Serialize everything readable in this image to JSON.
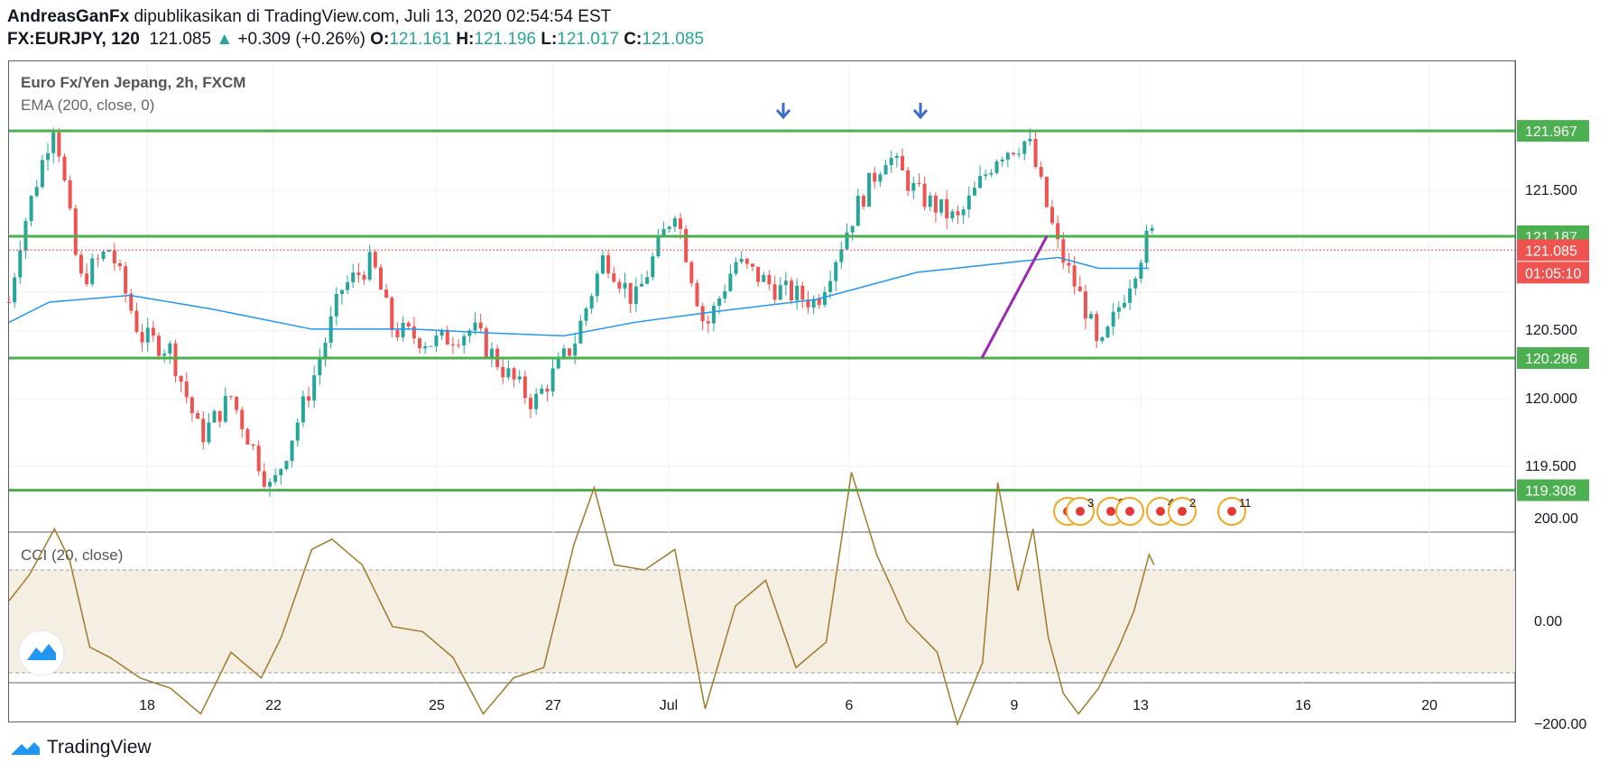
{
  "header": {
    "author": "AndreasGanFx",
    "published": "dipublikasikan di TradingView.com, Juli 13, 2020 02:54:54 EST",
    "symbol": "FX:EURJPY, 120",
    "last": "121.085",
    "change": "+0.309 (+0.26%)",
    "o_label": "O:",
    "o": "121.161",
    "h_label": "H:",
    "h": "121.196",
    "l_label": "L:",
    "l": "121.017",
    "c_label": "C:",
    "c": "121.085"
  },
  "footer": {
    "brand": "TradingView"
  },
  "colors": {
    "up": "#26a69a",
    "down": "#ef5350",
    "ema": "#2196f3",
    "levels": "#4caf50",
    "trendline": "#9c27b0",
    "cci": "#a07a2a",
    "arrows": "#2962ff"
  },
  "chart_data": [
    {
      "type": "candlestick",
      "title": "Euro Fx/Yen Jepang, 2h, FXCM",
      "indicator": "EMA (200, close, 0)",
      "x_ticks": [
        "18",
        "22",
        "25",
        "27",
        "Jul",
        "6",
        "9",
        "13",
        "16",
        "20"
      ],
      "y_ticks": [
        "121.500",
        "120.500",
        "120.000",
        "119.500"
      ],
      "ylim": [
        118.78,
        122.45
      ],
      "horizontal_levels": [
        121.967,
        121.187,
        120.286,
        119.308
      ],
      "level_labels": [
        "121.967",
        "121.187",
        "120.286",
        "119.308"
      ],
      "current_price": 121.085,
      "current_price_label": "121.085",
      "countdown": "01:05:10",
      "price_path": [
        [
          0,
          120.7
        ],
        [
          12,
          121.2
        ],
        [
          45,
          122.05
        ],
        [
          70,
          120.85
        ],
        [
          100,
          121.1
        ],
        [
          130,
          120.45
        ],
        [
          160,
          120.35
        ],
        [
          190,
          119.7
        ],
        [
          220,
          120.0
        ],
        [
          260,
          119.3
        ],
        [
          300,
          120.1
        ],
        [
          330,
          120.8
        ],
        [
          360,
          121.0
        ],
        [
          380,
          120.5
        ],
        [
          420,
          120.4
        ],
        [
          460,
          120.5
        ],
        [
          490,
          120.2
        ],
        [
          520,
          119.95
        ],
        [
          560,
          120.4
        ],
        [
          590,
          121.05
        ],
        [
          620,
          120.7
        ],
        [
          660,
          121.4
        ],
        [
          690,
          120.5
        ],
        [
          720,
          121.0
        ],
        [
          760,
          120.8
        ],
        [
          800,
          120.7
        ],
        [
          840,
          121.4
        ],
        [
          870,
          121.8
        ],
        [
          900,
          121.5
        ],
        [
          940,
          121.3
        ],
        [
          980,
          121.8
        ],
        [
          1010,
          121.9
        ],
        [
          1040,
          121.1
        ],
        [
          1070,
          120.6
        ],
        [
          1080,
          120.3
        ],
        [
          1110,
          120.85
        ],
        [
          1130,
          121.2
        ]
      ],
      "ema_path": [
        [
          0,
          120.55
        ],
        [
          40,
          120.7
        ],
        [
          120,
          120.75
        ],
        [
          200,
          120.65
        ],
        [
          300,
          120.5
        ],
        [
          400,
          120.5
        ],
        [
          480,
          120.47
        ],
        [
          550,
          120.45
        ],
        [
          620,
          120.55
        ],
        [
          700,
          120.63
        ],
        [
          800,
          120.72
        ],
        [
          900,
          120.92
        ],
        [
          1000,
          121.0
        ],
        [
          1040,
          121.03
        ],
        [
          1080,
          120.95
        ],
        [
          1130,
          120.95
        ]
      ],
      "trendline": [
        [
          1078,
          120.286
        ],
        [
          1150,
          121.187
        ]
      ],
      "arrow_markers": [
        866,
        1018
      ],
      "event_markers": [
        {
          "x": 1183,
          "label": "3",
          "type": "economic"
        },
        {
          "x": 1197,
          "label": "3",
          "type": "economic"
        },
        {
          "x": 1231,
          "label": "2",
          "type": "economic"
        },
        {
          "x": 1252,
          "label": "",
          "type": "economic"
        },
        {
          "x": 1286,
          "label": "4",
          "type": "economic"
        },
        {
          "x": 1310,
          "label": "2",
          "type": "economic"
        },
        {
          "x": 1365,
          "label": "11",
          "type": "economic"
        }
      ]
    },
    {
      "type": "line",
      "title": "CCI (20, close)",
      "y_ticks": [
        "200.00",
        "0.00",
        "−200.00"
      ],
      "ylim": [
        -260,
        300
      ],
      "band": [
        -100,
        100
      ],
      "series": [
        {
          "values": [
            [
              0,
              40
            ],
            [
              20,
              90
            ],
            [
              45,
              180
            ],
            [
              60,
              120
            ],
            [
              80,
              -50
            ],
            [
              100,
              -70
            ],
            [
              130,
              -110
            ],
            [
              160,
              -130
            ],
            [
              190,
              -180
            ],
            [
              220,
              -60
            ],
            [
              250,
              -110
            ],
            [
              270,
              -30
            ],
            [
              300,
              140
            ],
            [
              320,
              160
            ],
            [
              350,
              110
            ],
            [
              380,
              -10
            ],
            [
              410,
              -20
            ],
            [
              440,
              -70
            ],
            [
              470,
              -180
            ],
            [
              500,
              -110
            ],
            [
              530,
              -90
            ],
            [
              560,
              150
            ],
            [
              580,
              260
            ],
            [
              600,
              110
            ],
            [
              630,
              100
            ],
            [
              660,
              140
            ],
            [
              690,
              -170
            ],
            [
              720,
              30
            ],
            [
              750,
              80
            ],
            [
              780,
              -90
            ],
            [
              810,
              -40
            ],
            [
              835,
              290
            ],
            [
              860,
              130
            ],
            [
              890,
              0
            ],
            [
              920,
              -60
            ],
            [
              940,
              -200
            ],
            [
              965,
              -80
            ],
            [
              980,
              270
            ],
            [
              1000,
              60
            ],
            [
              1015,
              180
            ],
            [
              1030,
              -30
            ],
            [
              1045,
              -140
            ],
            [
              1060,
              -180
            ],
            [
              1080,
              -130
            ],
            [
              1100,
              -50
            ],
            [
              1115,
              20
            ],
            [
              1130,
              130
            ],
            [
              1135,
              110
            ]
          ]
        }
      ]
    }
  ]
}
